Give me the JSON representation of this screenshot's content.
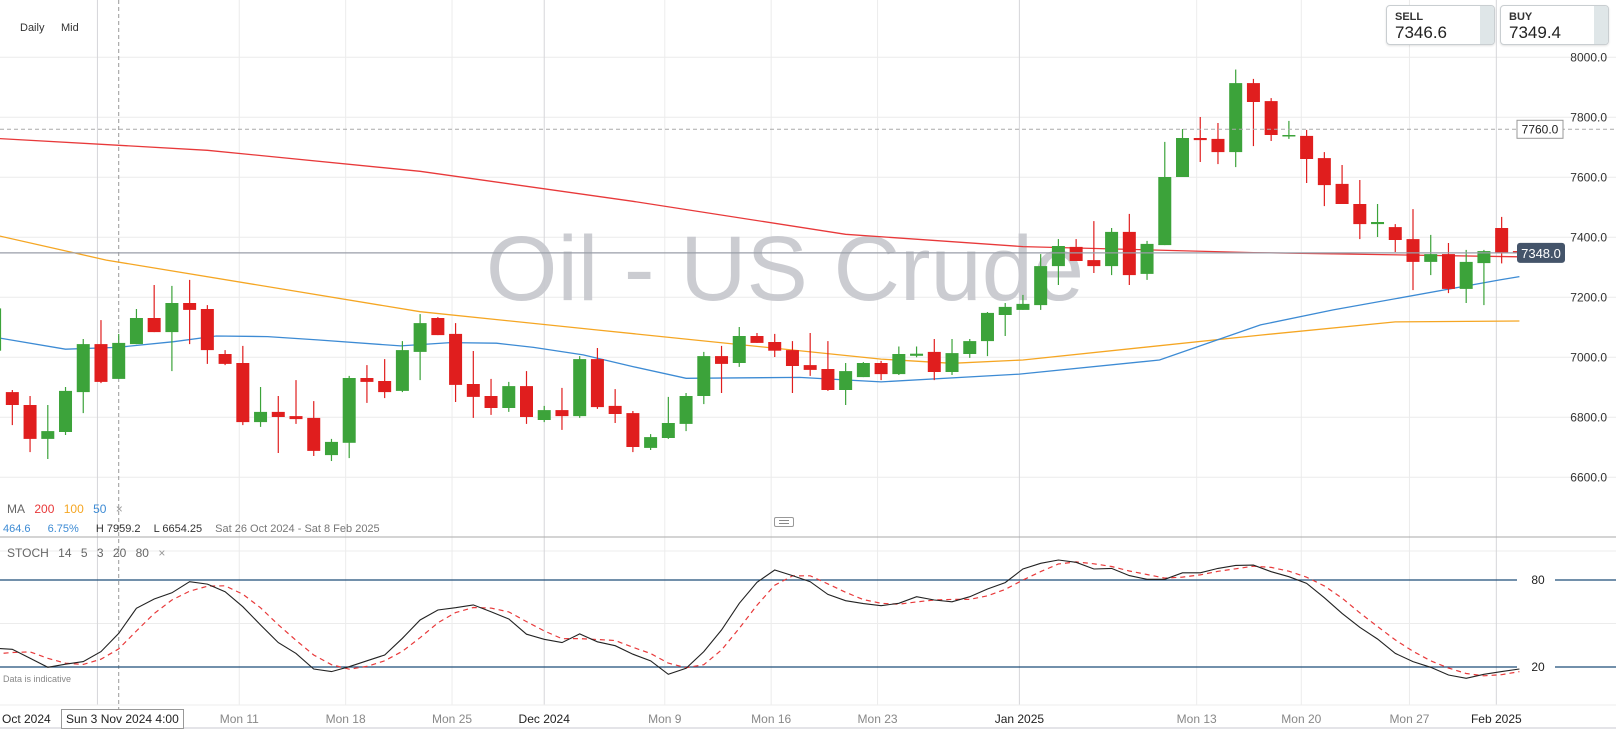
{
  "toolbar": {
    "interval": "Daily",
    "price_type": "Mid"
  },
  "quote": {
    "sell_label": "SELL",
    "sell_value": "7346.6",
    "buy_label": "BUY",
    "buy_value": "7349.4"
  },
  "ma_legend": {
    "label": "MA",
    "periods": [
      "200",
      "100",
      "50"
    ],
    "close": "×",
    "stats": {
      "change": "464.6",
      "change_pct": "6.75%",
      "high": "H 7959.2",
      "low": "L 6654.25",
      "range": "Sat 26 Oct 2024 - Sat 8 Feb 2025"
    }
  },
  "stoch_legend": {
    "label": "STOCH",
    "params": [
      "14",
      "5",
      "3",
      "20",
      "80"
    ],
    "close": "×"
  },
  "footer": {
    "disclaimer": "Data is indicative",
    "crosshair_date": "Sun 3 Nov 2024 4:00"
  },
  "colors": {
    "up": "#3ca33a",
    "down": "#e01e1e",
    "ma200": "#e8393a",
    "ma100": "#f5a623",
    "ma50": "#3d8bd4",
    "stoch_k": "#222222",
    "stoch_d": "#e8393a",
    "stoch_levels": "#1f4e79"
  },
  "chart_data": [
    {
      "type": "candlestick",
      "title": "Oil - US Crude",
      "y_ticks": [
        "6600.0",
        "6800.0",
        "7000.0",
        "7200.0",
        "7400.0",
        "7600.0",
        "7800.0",
        "8000.0"
      ],
      "ylim": [
        6600,
        8000
      ],
      "grid": true,
      "x_ticks": [
        {
          "label": "Oct 2024",
          "at": 0,
          "major": true
        },
        {
          "label": "Mon 11",
          "at": 13.8
        },
        {
          "label": "Mon 18",
          "at": 19.8
        },
        {
          "label": "Mon 25",
          "at": 25.8
        },
        {
          "label": "Dec 2024",
          "at": 31,
          "major": true
        },
        {
          "label": "Mon 9",
          "at": 37.8
        },
        {
          "label": "Mon 16",
          "at": 43.8
        },
        {
          "label": "Mon 23",
          "at": 49.8
        },
        {
          "label": "Jan 2025",
          "at": 57.8,
          "major": true
        },
        {
          "label": "Mon 13",
          "at": 67.8
        },
        {
          "label": "Mon 20",
          "at": 73.7
        },
        {
          "label": "Mon 27",
          "at": 79.8
        },
        {
          "label": "Feb 2025",
          "at": 84.7,
          "major": true
        }
      ],
      "month_line_nov": 5.8,
      "crosshair_at": 7,
      "reference_line": {
        "value": 7760,
        "label": "7760.0"
      },
      "last_price": {
        "value": 7348,
        "label": "7348.0"
      },
      "ohlc": [
        [
          7022,
          7163,
          7022,
          7163
        ],
        [
          6884,
          6891,
          6774,
          6841
        ],
        [
          6841,
          6871,
          6684,
          6728
        ],
        [
          6728,
          6841,
          6661,
          6754
        ],
        [
          6751,
          6901,
          6741,
          6888
        ],
        [
          6884,
          7061,
          6814,
          7044
        ],
        [
          7044,
          7124,
          6914,
          6918
        ],
        [
          6928,
          7078,
          6928,
          7048
        ],
        [
          7044,
          7161,
          7044,
          7131
        ],
        [
          7131,
          7241,
          7084,
          7084
        ],
        [
          7084,
          7238,
          6954,
          7181
        ],
        [
          7181,
          7258,
          7044,
          7158
        ],
        [
          7161,
          7174,
          6978,
          7024
        ],
        [
          7011,
          7024,
          6974,
          6978
        ],
        [
          6981,
          7038,
          6774,
          6784
        ],
        [
          6784,
          6901,
          6768,
          6818
        ],
        [
          6818,
          6871,
          6681,
          6801
        ],
        [
          6804,
          6924,
          6778,
          6794
        ],
        [
          6798,
          6854,
          6671,
          6688
        ],
        [
          6674,
          6728,
          6654.25,
          6718
        ],
        [
          6715,
          6938,
          6664,
          6931
        ],
        [
          6931,
          6974,
          6848,
          6918
        ],
        [
          6921,
          6994,
          6864,
          6884
        ],
        [
          6888,
          7054,
          6884,
          7024
        ],
        [
          7018,
          7144,
          6924,
          7114
        ],
        [
          7131,
          7134,
          7074,
          7074
        ],
        [
          7078,
          7114,
          6851,
          6908
        ],
        [
          6911,
          7021,
          6798,
          6868
        ],
        [
          6871,
          6928,
          6808,
          6831
        ],
        [
          6831,
          6918,
          6818,
          6904
        ],
        [
          6904,
          6954,
          6778,
          6801
        ],
        [
          6791,
          6838,
          6784,
          6824
        ],
        [
          6824,
          6898,
          6758,
          6804
        ],
        [
          6804,
          7004,
          6798,
          6994
        ],
        [
          6994,
          7031,
          6828,
          6834
        ],
        [
          6838,
          6894,
          6781,
          6811
        ],
        [
          6814,
          6821,
          6684,
          6701
        ],
        [
          6698,
          6744,
          6691,
          6734
        ],
        [
          6731,
          6868,
          6728,
          6781
        ],
        [
          6778,
          6881,
          6754,
          6871
        ],
        [
          6871,
          7018,
          6844,
          7004
        ],
        [
          7004,
          7038,
          6881,
          6978
        ],
        [
          6981,
          7101,
          6968,
          7071
        ],
        [
          7071,
          7081,
          7048,
          7048
        ],
        [
          7051,
          7078,
          7001,
          7022
        ],
        [
          7024,
          7054,
          6881,
          6971
        ],
        [
          6974,
          7081,
          6938,
          6958
        ],
        [
          6961,
          7054,
          6888,
          6891
        ],
        [
          6891,
          6981,
          6841,
          6954
        ],
        [
          6934,
          6984,
          6934,
          6981
        ],
        [
          6981,
          6988,
          6924,
          6944
        ],
        [
          6944,
          7036,
          6941,
          7011
        ],
        [
          7005,
          7036,
          7000,
          7012
        ],
        [
          7018,
          7061,
          6924,
          6951
        ],
        [
          6951,
          7061,
          6941,
          7014
        ],
        [
          7011,
          7061,
          6998,
          7054
        ],
        [
          7054,
          7151,
          7004,
          7148
        ],
        [
          7141,
          7181,
          7071,
          7168
        ],
        [
          7158,
          7208,
          7158,
          7178
        ],
        [
          7174,
          7344,
          7158,
          7304
        ],
        [
          7304,
          7394,
          7241,
          7371
        ],
        [
          7368,
          7394,
          7321,
          7321
        ],
        [
          7324,
          7454,
          7281,
          7304
        ],
        [
          7304,
          7431,
          7274,
          7418
        ],
        [
          7418,
          7478,
          7241,
          7274
        ],
        [
          7278,
          7388,
          7258,
          7378
        ],
        [
          7374,
          7718,
          7374,
          7601
        ],
        [
          7601,
          7761,
          7601,
          7731
        ],
        [
          7731,
          7801,
          7651,
          7724
        ],
        [
          7728,
          7781,
          7644,
          7684
        ],
        [
          7684,
          7959.2,
          7634,
          7914
        ],
        [
          7914,
          7928,
          7704,
          7851
        ],
        [
          7854,
          7864,
          7721,
          7741
        ],
        [
          7738,
          7788,
          7728,
          7741
        ],
        [
          7738,
          7758,
          7581,
          7661
        ],
        [
          7664,
          7684,
          7504,
          7574
        ],
        [
          7578,
          7641,
          7511,
          7511
        ],
        [
          7511,
          7591,
          7394,
          7444
        ],
        [
          7444,
          7511,
          7401,
          7451
        ],
        [
          7434,
          7444,
          7351,
          7391
        ],
        [
          7394,
          7494,
          7224,
          7318
        ],
        [
          7318,
          7408,
          7274,
          7344
        ],
        [
          7344,
          7381,
          7214,
          7228
        ],
        [
          7228,
          7358,
          7181,
          7318
        ],
        [
          7314,
          7358,
          7174,
          7354
        ],
        [
          7431,
          7468,
          7313,
          7348
        ],
        [
          7354,
          7361,
          7347,
          7347
        ]
      ],
      "moving_averages": [
        {
          "name": "200",
          "points": [
            [
              0,
              7730
            ],
            [
              12,
              7690
            ],
            [
              24,
              7620
            ],
            [
              36,
              7520
            ],
            [
              48,
              7410
            ],
            [
              58,
              7369
            ],
            [
              71,
              7349
            ],
            [
              86,
              7335
            ]
          ]
        },
        {
          "name": "100",
          "points": [
            [
              0,
              7408
            ],
            [
              6.3,
              7324
            ],
            [
              24,
              7152
            ],
            [
              34,
              7091
            ],
            [
              50,
              6994
            ],
            [
              54,
              6980
            ],
            [
              58,
              6991
            ],
            [
              71.4,
              7074
            ],
            [
              79,
              7118
            ],
            [
              86,
              7121
            ]
          ]
        },
        {
          "name": "50",
          "points": [
            [
              0,
              7067
            ],
            [
              4,
              7027
            ],
            [
              6.9,
              7033
            ],
            [
              10.1,
              7052
            ],
            [
              12.5,
              7071
            ],
            [
              15.4,
              7069
            ],
            [
              18.2,
              7058
            ],
            [
              22.9,
              7038
            ],
            [
              25.7,
              7049
            ],
            [
              28.3,
              7047
            ],
            [
              30.4,
              7033
            ],
            [
              33.2,
              7008
            ],
            [
              36,
              6969
            ],
            [
              39,
              6930
            ],
            [
              45.4,
              6933
            ],
            [
              50,
              6918
            ],
            [
              57.8,
              6944
            ],
            [
              65.7,
              6991
            ],
            [
              71.4,
              7108
            ],
            [
              75.5,
              7158
            ],
            [
              84.9,
              7258
            ],
            [
              86,
              7269
            ]
          ]
        }
      ]
    },
    {
      "type": "line",
      "ylim": [
        0,
        100
      ],
      "levels": [
        {
          "value": 80,
          "label": "80"
        },
        {
          "value": 20,
          "label": "20"
        }
      ],
      "k": [
        32.9,
        32.2,
        26,
        19.8,
        21.9,
        23.7,
        30.6,
        43.2,
        60.5,
        66.9,
        71.2,
        78.8,
        77.2,
        71.9,
        61.6,
        49,
        36.8,
        29.4,
        18.6,
        16.8,
        20.2,
        24.3,
        28.3,
        39.8,
        52.4,
        59.3,
        60.9,
        62.8,
        58.1,
        53.1,
        42.6,
        39.1,
        36.8,
        42.8,
        37.4,
        34.7,
        28.8,
        24.3,
        15,
        19.1,
        30.6,
        45.5,
        63.9,
        78.4,
        86.9,
        83,
        78.8,
        70.1,
        65.7,
        63.7,
        62.3,
        63.9,
        68.5,
        66.2,
        65,
        68.5,
        73.8,
        78.2,
        87.6,
        91.5,
        93.8,
        92.2,
        87.6,
        88,
        83,
        80.5,
        80.5,
        85,
        85,
        88,
        90.1,
        90.3,
        85.7,
        82.3,
        77.7,
        67.8,
        57,
        47.4,
        39.3,
        29.4,
        23.7,
        19.8,
        14.5,
        12.2,
        15,
        16.8,
        18.6
      ],
      "d": [
        29,
        30,
        30.4,
        26,
        22.6,
        21.8,
        25.4,
        32.5,
        44.8,
        56.9,
        66.2,
        72.3,
        75.7,
        76,
        70.2,
        60.8,
        49.1,
        38.4,
        28.3,
        21.6,
        18.5,
        20.4,
        24.3,
        30.8,
        40.2,
        50.5,
        57.5,
        61,
        60.6,
        58,
        51.3,
        44.9,
        39.5,
        39.6,
        39,
        38.3,
        33.6,
        29.3,
        22.7,
        19.5,
        21.6,
        31.7,
        46.7,
        62.6,
        76.4,
        82.8,
        82.9,
        77.3,
        71.5,
        66.5,
        63.9,
        63.3,
        64.9,
        66.2,
        66.6,
        66.6,
        69.1,
        73.5,
        79.9,
        85.8,
        91,
        92.5,
        91.2,
        89.3,
        86.2,
        83.8,
        81.3,
        82,
        83.5,
        86,
        87.7,
        89.5,
        88.7,
        86.1,
        81.9,
        75.9,
        67.5,
        57.4,
        47.9,
        38.7,
        30.8,
        24.3,
        19.3,
        15.5,
        13.9,
        14.7,
        16.8
      ]
    }
  ]
}
